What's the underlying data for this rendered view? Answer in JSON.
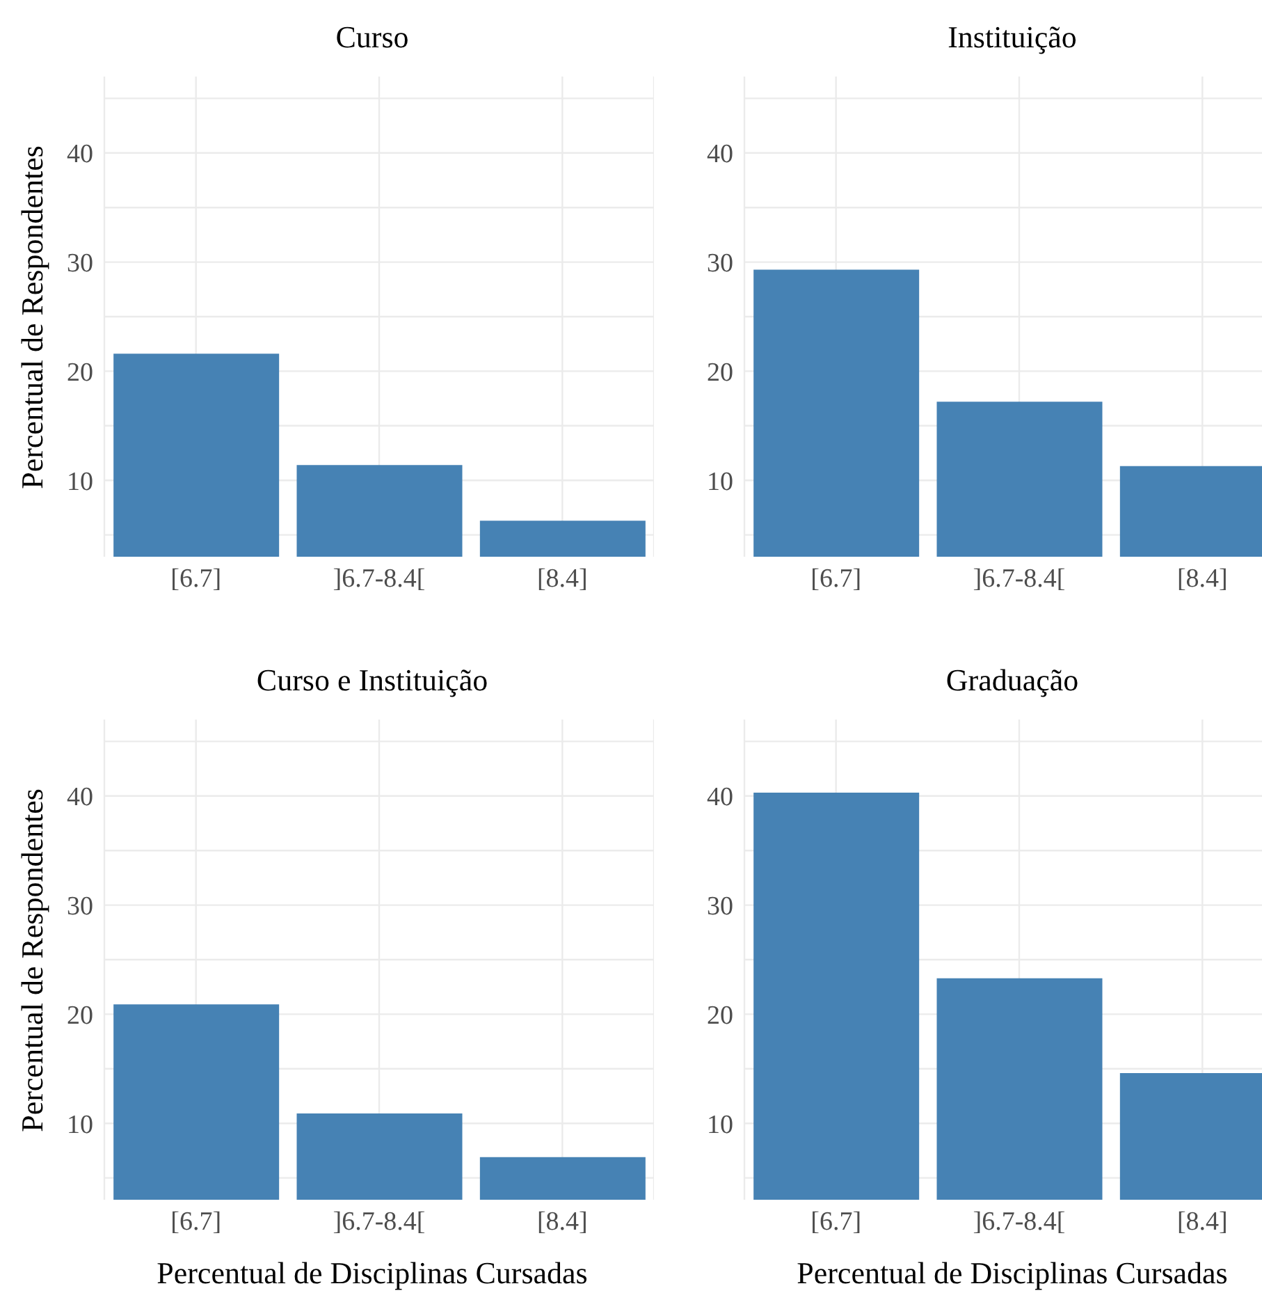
{
  "chart_data": [
    {
      "type": "bar",
      "title": "Curso",
      "ylabel": "Percentual de Respondentes",
      "categories": [
        "[6.7]",
        "]6.7-8.4[",
        "[8.4]"
      ],
      "values": [
        21.6,
        11.4,
        6.3
      ],
      "color": "#4682b4",
      "ylim": [
        3,
        47
      ],
      "yticks": [
        {
          "value": 5,
          "label": null
        },
        10,
        {
          "value": 15,
          "label": null
        },
        20,
        {
          "value": 25,
          "label": null
        },
        30,
        {
          "value": 35,
          "label": null
        },
        40,
        {
          "value": 45,
          "label": null
        }
      ],
      "grid": true
    },
    {
      "type": "bar",
      "title": "Instituição",
      "categories": [
        "[6.7]",
        "]6.7-8.4[",
        "[8.4]"
      ],
      "values": [
        29.3,
        17.2,
        11.3
      ],
      "color": "#4682b4",
      "ylim": [
        3,
        47
      ],
      "yticks": [
        {
          "value": 5,
          "label": null
        },
        10,
        {
          "value": 15,
          "label": null
        },
        20,
        {
          "value": 25,
          "label": null
        },
        30,
        {
          "value": 35,
          "label": null
        },
        40,
        {
          "value": 45,
          "label": null
        }
      ],
      "grid": true
    },
    {
      "type": "bar",
      "title": "Curso e Instituição",
      "ylabel": "Percentual de Respondentes",
      "xlabel": "Percentual de Disciplinas Cursadas",
      "categories": [
        "[6.7]",
        "]6.7-8.4[",
        "[8.4]"
      ],
      "values": [
        20.9,
        10.9,
        6.9
      ],
      "color": "#4682b4",
      "ylim": [
        3,
        47
      ],
      "yticks": [
        {
          "value": 5,
          "label": null
        },
        10,
        {
          "value": 15,
          "label": null
        },
        20,
        {
          "value": 25,
          "label": null
        },
        30,
        {
          "value": 35,
          "label": null
        },
        40,
        {
          "value": 45,
          "label": null
        }
      ],
      "grid": true
    },
    {
      "type": "bar",
      "title": "Graduação",
      "xlabel": "Percentual de Disciplinas Cursadas",
      "categories": [
        "[6.7]",
        "]6.7-8.4[",
        "[8.4]"
      ],
      "values": [
        40.3,
        23.3,
        14.6
      ],
      "color": "#4682b4",
      "ylim": [
        3,
        47
      ],
      "yticks": [
        {
          "value": 5,
          "label": null
        },
        10,
        {
          "value": 15,
          "label": null
        },
        20,
        {
          "value": 25,
          "label": null
        },
        30,
        {
          "value": 35,
          "label": null
        },
        40,
        {
          "value": 45,
          "label": null
        }
      ],
      "grid": true
    }
  ]
}
